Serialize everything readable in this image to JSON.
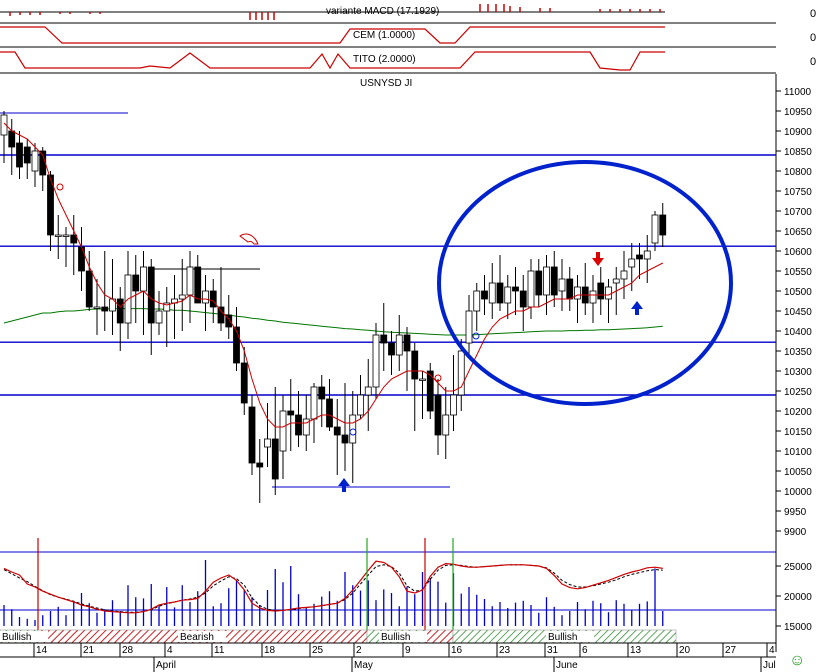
{
  "indicators": {
    "macd": {
      "label": "variante MACD (17.1929)",
      "value": "0"
    },
    "cem": {
      "label": "CEM (1.0000)",
      "value": "0"
    },
    "tito": {
      "label": "TITO (2.0000)",
      "value": "0"
    }
  },
  "symbol": "USNYSD JI",
  "smiley": "☺",
  "bands": [
    {
      "label": "Bullish",
      "type": "bull"
    },
    {
      "label": "Bearish",
      "type": "bear"
    },
    {
      "label": "Bullish",
      "type": "bull"
    },
    {
      "label": "Bullish",
      "type": "bull"
    }
  ],
  "x_axis": {
    "day_labels": [
      "14",
      "21",
      "28",
      "4",
      "11",
      "18",
      "25",
      "2",
      "9",
      "16",
      "23",
      "31",
      "6",
      "13",
      "20",
      "27",
      "4"
    ],
    "month_labels": [
      "April",
      "May",
      "June",
      "Jul"
    ]
  },
  "volume_axis": {
    "ticks": [
      "25000",
      "20000",
      "15000"
    ]
  },
  "colors": {
    "up": "#ffffff",
    "down": "#000000",
    "wick": "#000000",
    "hline": "#0000cc",
    "ma_short": "#cc0000",
    "ma_long": "#007700",
    "ellipse": "#0022cc",
    "arrow_up": "#0022cc",
    "arrow_down": "#dd0000",
    "bull": "#2a8a2a",
    "bear": "#cc2222"
  },
  "chart_data": {
    "type": "candlestick",
    "ylim": [
      9880,
      11050
    ],
    "y_ticks": [
      11000,
      10950,
      10900,
      10850,
      10800,
      10750,
      10700,
      10650,
      10600,
      10550,
      10500,
      10450,
      10400,
      10350,
      10300,
      10250,
      10200,
      10150,
      10100,
      10050,
      10000,
      9950,
      9900
    ],
    "horizontal_lines": [
      10945,
      10840,
      10612,
      10372,
      10240,
      10010
    ],
    "support_box_high": 10555,
    "series": [
      {
        "o": 10890,
        "h": 10950,
        "l": 10820,
        "c": 10940
      },
      {
        "o": 10900,
        "h": 10930,
        "l": 10790,
        "c": 10860
      },
      {
        "o": 10870,
        "h": 10900,
        "l": 10780,
        "c": 10810
      },
      {
        "o": 10860,
        "h": 10880,
        "l": 10780,
        "c": 10820
      },
      {
        "o": 10800,
        "h": 10870,
        "l": 10760,
        "c": 10850
      },
      {
        "o": 10850,
        "h": 10860,
        "l": 10750,
        "c": 10790
      },
      {
        "o": 10790,
        "h": 10800,
        "l": 10600,
        "c": 10640
      },
      {
        "o": 10640,
        "h": 10690,
        "l": 10580,
        "c": 10640
      },
      {
        "o": 10640,
        "h": 10660,
        "l": 10560,
        "c": 10640
      },
      {
        "o": 10640,
        "h": 10690,
        "l": 10540,
        "c": 10620
      },
      {
        "o": 10610,
        "h": 10660,
        "l": 10500,
        "c": 10550
      },
      {
        "o": 10550,
        "h": 10600,
        "l": 10450,
        "c": 10460
      },
      {
        "o": 10460,
        "h": 10530,
        "l": 10390,
        "c": 10460
      },
      {
        "o": 10460,
        "h": 10600,
        "l": 10400,
        "c": 10450
      },
      {
        "o": 10450,
        "h": 10580,
        "l": 10390,
        "c": 10480
      },
      {
        "o": 10480,
        "h": 10510,
        "l": 10350,
        "c": 10420
      },
      {
        "o": 10420,
        "h": 10600,
        "l": 10380,
        "c": 10540
      },
      {
        "o": 10540,
        "h": 10590,
        "l": 10420,
        "c": 10500
      },
      {
        "o": 10500,
        "h": 10600,
        "l": 10390,
        "c": 10560
      },
      {
        "o": 10560,
        "h": 10580,
        "l": 10340,
        "c": 10420
      },
      {
        "o": 10420,
        "h": 10500,
        "l": 10390,
        "c": 10450
      },
      {
        "o": 10450,
        "h": 10510,
        "l": 10360,
        "c": 10470
      },
      {
        "o": 10470,
        "h": 10540,
        "l": 10380,
        "c": 10480
      },
      {
        "o": 10480,
        "h": 10580,
        "l": 10400,
        "c": 10490
      },
      {
        "o": 10490,
        "h": 10600,
        "l": 10420,
        "c": 10560
      },
      {
        "o": 10560,
        "h": 10590,
        "l": 10470,
        "c": 10470
      },
      {
        "o": 10470,
        "h": 10540,
        "l": 10400,
        "c": 10500
      },
      {
        "o": 10500,
        "h": 10530,
        "l": 10420,
        "c": 10460
      },
      {
        "o": 10460,
        "h": 10560,
        "l": 10400,
        "c": 10420
      },
      {
        "o": 10440,
        "h": 10490,
        "l": 10380,
        "c": 10410
      },
      {
        "o": 10410,
        "h": 10460,
        "l": 10300,
        "c": 10320
      },
      {
        "o": 10320,
        "h": 10360,
        "l": 10190,
        "c": 10220
      },
      {
        "o": 10210,
        "h": 10240,
        "l": 10040,
        "c": 10070
      },
      {
        "o": 10070,
        "h": 10130,
        "l": 9970,
        "c": 10060
      },
      {
        "o": 10110,
        "h": 10220,
        "l": 10060,
        "c": 10130
      },
      {
        "o": 10130,
        "h": 10260,
        "l": 9990,
        "c": 10030
      },
      {
        "o": 10100,
        "h": 10240,
        "l": 10030,
        "c": 10200
      },
      {
        "o": 10200,
        "h": 10280,
        "l": 10100,
        "c": 10190
      },
      {
        "o": 10190,
        "h": 10250,
        "l": 10110,
        "c": 10140
      },
      {
        "o": 10140,
        "h": 10240,
        "l": 10100,
        "c": 10180
      },
      {
        "o": 10180,
        "h": 10270,
        "l": 10120,
        "c": 10260
      },
      {
        "o": 10260,
        "h": 10290,
        "l": 10160,
        "c": 10230
      },
      {
        "o": 10230,
        "h": 10280,
        "l": 10150,
        "c": 10160
      },
      {
        "o": 10160,
        "h": 10230,
        "l": 10040,
        "c": 10140
      },
      {
        "o": 10140,
        "h": 10270,
        "l": 10050,
        "c": 10120
      },
      {
        "o": 10120,
        "h": 10250,
        "l": 10020,
        "c": 10190
      },
      {
        "o": 10190,
        "h": 10290,
        "l": 10180,
        "c": 10240
      },
      {
        "o": 10240,
        "h": 10330,
        "l": 10150,
        "c": 10260
      },
      {
        "o": 10260,
        "h": 10420,
        "l": 10230,
        "c": 10390
      },
      {
        "o": 10390,
        "h": 10470,
        "l": 10300,
        "c": 10370
      },
      {
        "o": 10370,
        "h": 10400,
        "l": 10290,
        "c": 10340
      },
      {
        "o": 10340,
        "h": 10440,
        "l": 10300,
        "c": 10390
      },
      {
        "o": 10390,
        "h": 10410,
        "l": 10250,
        "c": 10350
      },
      {
        "o": 10350,
        "h": 10370,
        "l": 10150,
        "c": 10280
      },
      {
        "o": 10280,
        "h": 10300,
        "l": 10180,
        "c": 10280
      },
      {
        "o": 10300,
        "h": 10320,
        "l": 10180,
        "c": 10200
      },
      {
        "o": 10240,
        "h": 10280,
        "l": 10090,
        "c": 10140
      },
      {
        "o": 10140,
        "h": 10260,
        "l": 10080,
        "c": 10190
      },
      {
        "o": 10190,
        "h": 10340,
        "l": 10150,
        "c": 10240
      },
      {
        "o": 10240,
        "h": 10380,
        "l": 10200,
        "c": 10350
      },
      {
        "o": 10370,
        "h": 10490,
        "l": 10330,
        "c": 10450
      },
      {
        "o": 10450,
        "h": 10520,
        "l": 10400,
        "c": 10500
      },
      {
        "o": 10500,
        "h": 10540,
        "l": 10440,
        "c": 10480
      },
      {
        "o": 10470,
        "h": 10570,
        "l": 10430,
        "c": 10520
      },
      {
        "o": 10520,
        "h": 10590,
        "l": 10450,
        "c": 10470
      },
      {
        "o": 10470,
        "h": 10540,
        "l": 10430,
        "c": 10510
      },
      {
        "o": 10510,
        "h": 10560,
        "l": 10440,
        "c": 10500
      },
      {
        "o": 10500,
        "h": 10540,
        "l": 10400,
        "c": 10460
      },
      {
        "o": 10460,
        "h": 10580,
        "l": 10430,
        "c": 10550
      },
      {
        "o": 10550,
        "h": 10580,
        "l": 10460,
        "c": 10490
      },
      {
        "o": 10490,
        "h": 10590,
        "l": 10440,
        "c": 10560
      },
      {
        "o": 10560,
        "h": 10600,
        "l": 10460,
        "c": 10490
      },
      {
        "o": 10500,
        "h": 10580,
        "l": 10450,
        "c": 10530
      },
      {
        "o": 10530,
        "h": 10560,
        "l": 10450,
        "c": 10480
      },
      {
        "o": 10480,
        "h": 10540,
        "l": 10420,
        "c": 10510
      },
      {
        "o": 10510,
        "h": 10570,
        "l": 10440,
        "c": 10470
      },
      {
        "o": 10470,
        "h": 10540,
        "l": 10420,
        "c": 10500
      },
      {
        "o": 10520,
        "h": 10560,
        "l": 10440,
        "c": 10480
      },
      {
        "o": 10480,
        "h": 10530,
        "l": 10420,
        "c": 10510
      },
      {
        "o": 10520,
        "h": 10560,
        "l": 10440,
        "c": 10530
      },
      {
        "o": 10530,
        "h": 10600,
        "l": 10480,
        "c": 10550
      },
      {
        "o": 10560,
        "h": 10620,
        "l": 10500,
        "c": 10580
      },
      {
        "o": 10590,
        "h": 10620,
        "l": 10530,
        "c": 10580
      },
      {
        "o": 10580,
        "h": 10640,
        "l": 10520,
        "c": 10600
      },
      {
        "o": 10620,
        "h": 10700,
        "l": 10600,
        "c": 10690
      },
      {
        "o": 10690,
        "h": 10720,
        "l": 10610,
        "c": 10640
      }
    ],
    "moving_average_short": [
      10920,
      10900,
      10890,
      10880,
      10860,
      10840,
      10780,
      10730,
      10690,
      10650,
      10610,
      10560,
      10520,
      10490,
      10480,
      10460,
      10480,
      10490,
      10500,
      10480,
      10470,
      10465,
      10470,
      10475,
      10490,
      10480,
      10480,
      10475,
      10450,
      10430,
      10400,
      10350,
      10280,
      10220,
      10180,
      10160,
      10160,
      10170,
      10170,
      10170,
      10180,
      10190,
      10190,
      10180,
      10170,
      10170,
      10180,
      10200,
      10230,
      10260,
      10280,
      10290,
      10300,
      10300,
      10300,
      10290,
      10270,
      10250,
      10250,
      10260,
      10300,
      10340,
      10380,
      10410,
      10430,
      10440,
      10450,
      10450,
      10460,
      10460,
      10470,
      10480,
      10480,
      10480,
      10490,
      10490,
      10490,
      10490,
      10490,
      10500,
      10510,
      10520,
      10540,
      10550,
      10560,
      10570
    ],
    "moving_average_long": [
      10420,
      10425,
      10430,
      10435,
      10440,
      10445,
      10445,
      10448,
      10450,
      10450,
      10452,
      10454,
      10455,
      10455,
      10456,
      10456,
      10456,
      10456,
      10456,
      10455,
      10455,
      10454,
      10452,
      10452,
      10450,
      10448,
      10446,
      10444,
      10442,
      10440,
      10437,
      10435,
      10432,
      10430,
      10427,
      10425,
      10422,
      10420,
      10418,
      10416,
      10414,
      10412,
      10410,
      10408,
      10406,
      10405,
      10403,
      10402,
      10400,
      10398,
      10397,
      10396,
      10395,
      10394,
      10393,
      10392,
      10391,
      10390,
      10390,
      10390,
      10390,
      10391,
      10392,
      10393,
      10394,
      10395,
      10396,
      10397,
      10398,
      10399,
      10400,
      10400,
      10400,
      10401,
      10401,
      10402,
      10402,
      10403,
      10403,
      10404,
      10405,
      10406,
      10407,
      10408,
      10410,
      10412
    ],
    "volume_ylim": [
      15000,
      28000
    ],
    "volume": [
      18500,
      17800,
      16500,
      16200,
      16000,
      16800,
      17500,
      18200,
      16800,
      19200,
      20500,
      18800,
      17200,
      17800,
      19300,
      17500,
      21800,
      19800,
      19600,
      22000,
      18300,
      21500,
      18100,
      21800,
      19000,
      20800,
      26000,
      18300,
      18800,
      21300,
      22500,
      21000,
      19800,
      18500,
      21000,
      24500,
      22300,
      25000,
      20300,
      18100,
      18700,
      19900,
      20800,
      19200,
      24000,
      21800,
      20900,
      22600,
      19300,
      21100,
      20500,
      18300,
      21600,
      20300,
      24000,
      23000,
      22400,
      18900,
      23800,
      20400,
      21500,
      20200,
      19500,
      18300,
      19000,
      18000,
      18900,
      19200,
      18500,
      17200,
      19800,
      18200,
      16800,
      17500,
      19000,
      17800,
      19200,
      18800,
      17300,
      19300,
      18700,
      17700,
      18700,
      19100,
      24600,
      17500
    ],
    "volume_ma_solid": [
      24600,
      24000,
      23500,
      22000,
      21500,
      20800,
      20300,
      19800,
      19400,
      19000,
      18500,
      18200,
      17800,
      17500,
      17400,
      17300,
      17200,
      17200,
      17400,
      17800,
      18500,
      18800,
      19000,
      19300,
      19400,
      19600,
      20800,
      22300,
      23000,
      23500,
      22600,
      21000,
      18800,
      18000,
      17600,
      17500,
      17600,
      17800,
      18000,
      18100,
      18200,
      18400,
      18600,
      18800,
      19600,
      21000,
      22600,
      24300,
      25800,
      25600,
      24800,
      23200,
      20800,
      20500,
      21000,
      23300,
      24800,
      25400,
      25300,
      25000,
      24800,
      24800,
      24900,
      25000,
      25100,
      25200,
      25200,
      25200,
      25100,
      25000,
      24600,
      23400,
      22000,
      21400,
      21200,
      21400,
      21800,
      22200,
      22600,
      23100,
      23600,
      24000,
      24300,
      24700,
      24800,
      24600
    ],
    "volume_ma_dashed": [
      24400,
      23700,
      23000,
      22400,
      21600,
      20900,
      20200,
      19800,
      19500,
      19100,
      18700,
      18300,
      18000,
      17700,
      17500,
      17400,
      17300,
      17300,
      17400,
      17700,
      18300,
      18700,
      19000,
      19300,
      19500,
      19800,
      20500,
      21700,
      22500,
      23200,
      22900,
      21800,
      19700,
      18400,
      17800,
      17600,
      17600,
      17700,
      17900,
      18100,
      18200,
      18400,
      18600,
      18800,
      19400,
      20500,
      22000,
      23500,
      24900,
      25200,
      24900,
      23800,
      21700,
      20800,
      21000,
      22800,
      24300,
      25100,
      25200,
      25100,
      24900,
      24800,
      24900,
      25000,
      25100,
      25200,
      25200,
      25200,
      25100,
      25000,
      24700,
      23800,
      22600,
      21900,
      21500,
      21500,
      21700,
      22000,
      22300,
      22700,
      23200,
      23600,
      23900,
      24200,
      24400,
      24300
    ]
  }
}
